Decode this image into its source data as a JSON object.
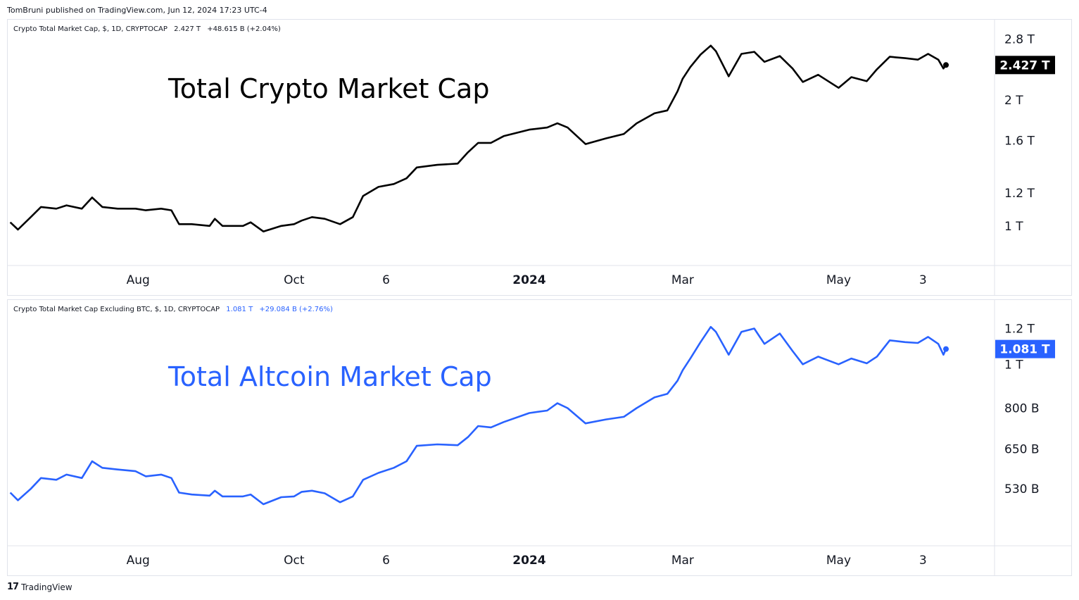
{
  "publisher_line": "TomBruni published on TradingView.com, Jun 12, 2024 17:23 UTC-4",
  "footer": {
    "logo_glyph": "17",
    "brand": "TradingView"
  },
  "panes": [
    {
      "legend": {
        "symbol": "Crypto Total Market Cap, $, 1D, CRYPTOCAP",
        "value": "2.427 T",
        "change": "+48.615 B (+2.04%)"
      },
      "title": "Total Crypto Market Cap"
    },
    {
      "legend": {
        "symbol": "Crypto Total Market Cap Excluding BTC, $, 1D, CRYPTOCAP",
        "value": "1.081 T",
        "change": "+29.084 B (+2.76%)"
      },
      "title": "Total Altcoin Market Cap"
    }
  ],
  "colors": {
    "series1": "#000000",
    "series2": "#2962ff",
    "grid_border": "#e0e3eb",
    "text": "#131722"
  },
  "chart_data": [
    {
      "type": "line",
      "title": "Total Crypto Market Cap",
      "scale": "log",
      "ylim": [
        0.9,
        2.95
      ],
      "y_ticks": [
        1.0,
        1.2,
        1.6,
        2.0,
        2.8
      ],
      "y_tick_labels": [
        "1 T",
        "1.2 T",
        "1.6 T",
        "2 T",
        "2.8 T"
      ],
      "last_value_label": "2.427 T",
      "x_ticks": [
        {
          "date": "2023-08-01",
          "label": "Aug",
          "bold": false
        },
        {
          "date": "2023-10-01",
          "label": "Oct",
          "bold": false
        },
        {
          "date": "2023-11-06",
          "label": "6",
          "bold": false
        },
        {
          "date": "2024-01-01",
          "label": "2024",
          "bold": true
        },
        {
          "date": "2024-03-01",
          "label": "Mar",
          "bold": false
        },
        {
          "date": "2024-05-01",
          "label": "May",
          "bold": false
        },
        {
          "date": "2024-06-03",
          "label": "3",
          "bold": false
        }
      ],
      "xlim": [
        "2023-06-11",
        "2024-07-01"
      ],
      "series": [
        {
          "points": [
            [
              "2023-06-12",
              1.02
            ],
            [
              "2023-06-15",
              0.98
            ],
            [
              "2023-06-20",
              1.05
            ],
            [
              "2023-06-24",
              1.11
            ],
            [
              "2023-06-30",
              1.1
            ],
            [
              "2023-07-04",
              1.12
            ],
            [
              "2023-07-10",
              1.1
            ],
            [
              "2023-07-14",
              1.17
            ],
            [
              "2023-07-18",
              1.11
            ],
            [
              "2023-07-24",
              1.1
            ],
            [
              "2023-07-31",
              1.1
            ],
            [
              "2023-08-04",
              1.09
            ],
            [
              "2023-08-10",
              1.1
            ],
            [
              "2023-08-14",
              1.09
            ],
            [
              "2023-08-17",
              1.01
            ],
            [
              "2023-08-22",
              1.01
            ],
            [
              "2023-08-29",
              1.0
            ],
            [
              "2023-08-31",
              1.04
            ],
            [
              "2023-09-03",
              1.0
            ],
            [
              "2023-09-11",
              1.0
            ],
            [
              "2023-09-14",
              1.02
            ],
            [
              "2023-09-19",
              0.97
            ],
            [
              "2023-09-26",
              1.0
            ],
            [
              "2023-10-01",
              1.01
            ],
            [
              "2023-10-04",
              1.03
            ],
            [
              "2023-10-08",
              1.05
            ],
            [
              "2023-10-13",
              1.04
            ],
            [
              "2023-10-19",
              1.01
            ],
            [
              "2023-10-24",
              1.05
            ],
            [
              "2023-10-28",
              1.18
            ],
            [
              "2023-11-03",
              1.24
            ],
            [
              "2023-11-09",
              1.26
            ],
            [
              "2023-11-14",
              1.3
            ],
            [
              "2023-11-18",
              1.38
            ],
            [
              "2023-11-26",
              1.4
            ],
            [
              "2023-12-04",
              1.41
            ],
            [
              "2023-12-08",
              1.5
            ],
            [
              "2023-12-12",
              1.58
            ],
            [
              "2023-12-17",
              1.58
            ],
            [
              "2023-12-22",
              1.64
            ],
            [
              "2024-01-01",
              1.7
            ],
            [
              "2024-01-08",
              1.72
            ],
            [
              "2024-01-12",
              1.76
            ],
            [
              "2024-01-16",
              1.72
            ],
            [
              "2024-01-23",
              1.57
            ],
            [
              "2024-01-31",
              1.62
            ],
            [
              "2024-02-07",
              1.66
            ],
            [
              "2024-02-12",
              1.76
            ],
            [
              "2024-02-19",
              1.86
            ],
            [
              "2024-02-24",
              1.89
            ],
            [
              "2024-02-28",
              2.1
            ],
            [
              "2024-03-01",
              2.25
            ],
            [
              "2024-03-04",
              2.4
            ],
            [
              "2024-03-08",
              2.57
            ],
            [
              "2024-03-12",
              2.7
            ],
            [
              "2024-03-14",
              2.62
            ],
            [
              "2024-03-19",
              2.28
            ],
            [
              "2024-03-24",
              2.58
            ],
            [
              "2024-03-29",
              2.61
            ],
            [
              "2024-04-02",
              2.47
            ],
            [
              "2024-04-08",
              2.55
            ],
            [
              "2024-04-13",
              2.38
            ],
            [
              "2024-04-17",
              2.21
            ],
            [
              "2024-04-23",
              2.3
            ],
            [
              "2024-05-01",
              2.14
            ],
            [
              "2024-05-06",
              2.27
            ],
            [
              "2024-05-12",
              2.22
            ],
            [
              "2024-05-16",
              2.37
            ],
            [
              "2024-05-21",
              2.54
            ],
            [
              "2024-05-27",
              2.52
            ],
            [
              "2024-06-01",
              2.5
            ],
            [
              "2024-06-05",
              2.58
            ],
            [
              "2024-06-09",
              2.5
            ],
            [
              "2024-06-11",
              2.38
            ],
            [
              "2024-06-12",
              2.427
            ]
          ]
        }
      ]
    },
    {
      "type": "line",
      "title": "Total Altcoin Market Cap",
      "scale": "log",
      "ylim": [
        440,
        1320
      ],
      "y_ticks": [
        530,
        650,
        800,
        1000,
        1200
      ],
      "y_tick_labels": [
        "530 B",
        "650 B",
        "800 B",
        "1 T",
        "1.2 T"
      ],
      "last_value_label": "1.081 T",
      "x_ticks": [
        {
          "date": "2023-08-01",
          "label": "Aug",
          "bold": false
        },
        {
          "date": "2023-10-01",
          "label": "Oct",
          "bold": false
        },
        {
          "date": "2023-11-06",
          "label": "6",
          "bold": false
        },
        {
          "date": "2024-01-01",
          "label": "2024",
          "bold": true
        },
        {
          "date": "2024-03-01",
          "label": "Mar",
          "bold": false
        },
        {
          "date": "2024-05-01",
          "label": "May",
          "bold": false
        },
        {
          "date": "2024-06-03",
          "label": "3",
          "bold": false
        }
      ],
      "xlim": [
        "2023-06-11",
        "2024-07-01"
      ],
      "series": [
        {
          "points": [
            [
              "2023-06-12",
              520
            ],
            [
              "2023-06-15",
              500
            ],
            [
              "2023-06-20",
              530
            ],
            [
              "2023-06-24",
              560
            ],
            [
              "2023-06-30",
              555
            ],
            [
              "2023-07-04",
              570
            ],
            [
              "2023-07-10",
              560
            ],
            [
              "2023-07-14",
              610
            ],
            [
              "2023-07-18",
              590
            ],
            [
              "2023-07-24",
              585
            ],
            [
              "2023-07-31",
              580
            ],
            [
              "2023-08-04",
              565
            ],
            [
              "2023-08-10",
              570
            ],
            [
              "2023-08-14",
              560
            ],
            [
              "2023-08-17",
              520
            ],
            [
              "2023-08-22",
              515
            ],
            [
              "2023-08-29",
              512
            ],
            [
              "2023-08-31",
              525
            ],
            [
              "2023-09-03",
              510
            ],
            [
              "2023-09-11",
              510
            ],
            [
              "2023-09-14",
              515
            ],
            [
              "2023-09-19",
              490
            ],
            [
              "2023-09-26",
              508
            ],
            [
              "2023-10-01",
              510
            ],
            [
              "2023-10-04",
              522
            ],
            [
              "2023-10-08",
              525
            ],
            [
              "2023-10-13",
              518
            ],
            [
              "2023-10-19",
              495
            ],
            [
              "2023-10-24",
              510
            ],
            [
              "2023-10-28",
              555
            ],
            [
              "2023-11-03",
              575
            ],
            [
              "2023-11-09",
              590
            ],
            [
              "2023-11-14",
              610
            ],
            [
              "2023-11-18",
              660
            ],
            [
              "2023-11-26",
              665
            ],
            [
              "2023-12-04",
              662
            ],
            [
              "2023-12-08",
              690
            ],
            [
              "2023-12-12",
              730
            ],
            [
              "2023-12-17",
              725
            ],
            [
              "2023-12-22",
              745
            ],
            [
              "2024-01-01",
              780
            ],
            [
              "2024-01-08",
              790
            ],
            [
              "2024-01-12",
              820
            ],
            [
              "2024-01-16",
              800
            ],
            [
              "2024-01-23",
              740
            ],
            [
              "2024-01-31",
              755
            ],
            [
              "2024-02-07",
              765
            ],
            [
              "2024-02-12",
              800
            ],
            [
              "2024-02-19",
              845
            ],
            [
              "2024-02-24",
              860
            ],
            [
              "2024-02-28",
              920
            ],
            [
              "2024-03-01",
              970
            ],
            [
              "2024-03-04",
              1030
            ],
            [
              "2024-03-08",
              1120
            ],
            [
              "2024-03-12",
              1210
            ],
            [
              "2024-03-14",
              1180
            ],
            [
              "2024-03-19",
              1050
            ],
            [
              "2024-03-24",
              1180
            ],
            [
              "2024-03-29",
              1200
            ],
            [
              "2024-04-02",
              1110
            ],
            [
              "2024-04-08",
              1170
            ],
            [
              "2024-04-13",
              1070
            ],
            [
              "2024-04-17",
              1000
            ],
            [
              "2024-04-23",
              1040
            ],
            [
              "2024-05-01",
              1000
            ],
            [
              "2024-05-06",
              1030
            ],
            [
              "2024-05-12",
              1005
            ],
            [
              "2024-05-16",
              1040
            ],
            [
              "2024-05-21",
              1130
            ],
            [
              "2024-05-27",
              1120
            ],
            [
              "2024-06-01",
              1115
            ],
            [
              "2024-06-05",
              1150
            ],
            [
              "2024-06-09",
              1110
            ],
            [
              "2024-06-11",
              1050
            ],
            [
              "2024-06-12",
              1081
            ]
          ]
        }
      ]
    }
  ]
}
